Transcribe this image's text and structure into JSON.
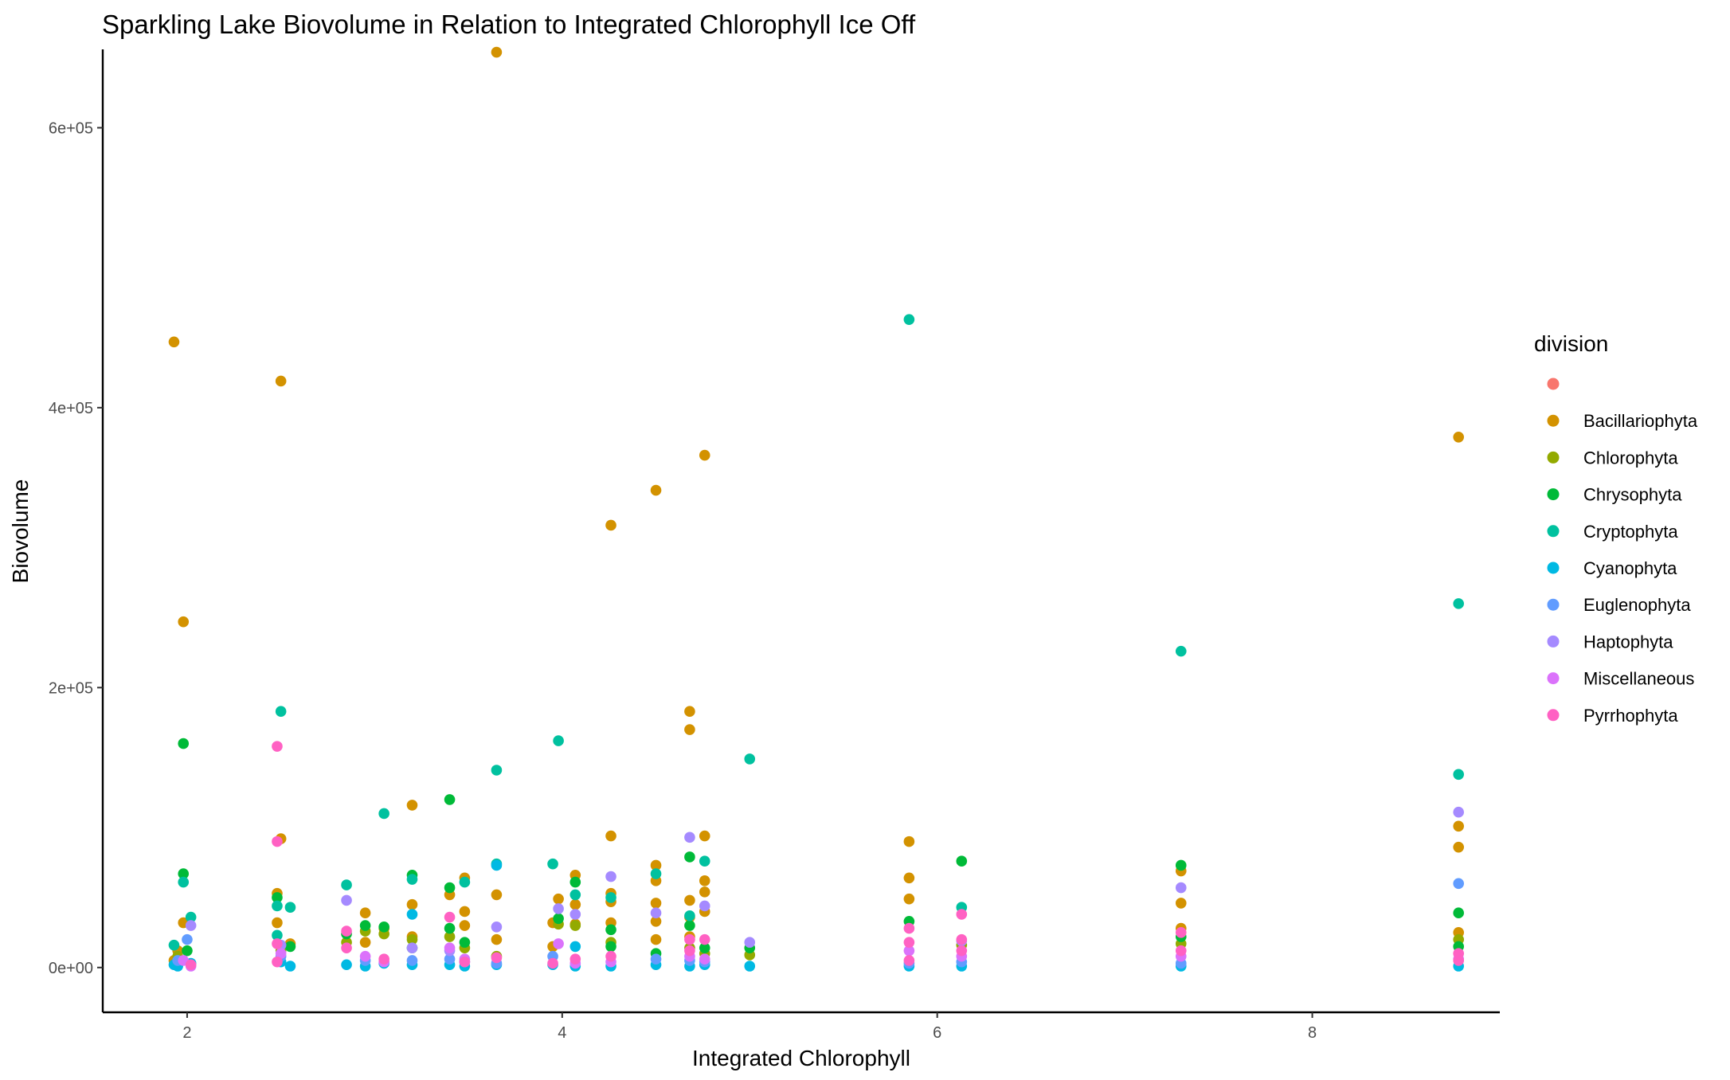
{
  "chart_data": {
    "type": "scatter",
    "title": "Sparkling Lake Biovolume in Relation to Integrated Chlorophyll Ice Off",
    "xlabel": "Integrated Chlorophyll",
    "ylabel": "Biovolume",
    "xlim": [
      1.55,
      9.0
    ],
    "ylim": [
      -32000,
      656000
    ],
    "x_ticks": [
      2,
      4,
      6,
      8
    ],
    "x_tick_labels": [
      "2",
      "4",
      "6",
      "8"
    ],
    "y_ticks": [
      0,
      200000,
      400000,
      600000
    ],
    "y_tick_labels": [
      "0e+00",
      "2e+05",
      "4e+05",
      "6e+05"
    ],
    "grid": false,
    "legend_title": "division",
    "legend_position": "right",
    "series": [
      {
        "name": "",
        "color": "#F8766D",
        "points": []
      },
      {
        "name": "Bacillariophyta",
        "color": "#D39200",
        "points": [
          [
            1.93,
            447000
          ],
          [
            1.98,
            247000
          ],
          [
            1.98,
            32000
          ],
          [
            1.95,
            12000
          ],
          [
            1.93,
            5000
          ],
          [
            2.5,
            419000
          ],
          [
            2.5,
            92000
          ],
          [
            2.48,
            53000
          ],
          [
            2.48,
            32000
          ],
          [
            2.55,
            17000
          ],
          [
            2.95,
            39000
          ],
          [
            2.95,
            18000
          ],
          [
            3.05,
            28000
          ],
          [
            3.2,
            116000
          ],
          [
            3.2,
            45000
          ],
          [
            3.2,
            22000
          ],
          [
            3.4,
            52000
          ],
          [
            3.48,
            64000
          ],
          [
            3.48,
            40000
          ],
          [
            3.48,
            30000
          ],
          [
            3.65,
            654000
          ],
          [
            3.65,
            52000
          ],
          [
            3.65,
            20000
          ],
          [
            3.95,
            32000
          ],
          [
            3.95,
            15000
          ],
          [
            3.98,
            49000
          ],
          [
            4.07,
            66000
          ],
          [
            4.07,
            45000
          ],
          [
            4.07,
            31000
          ],
          [
            4.26,
            316000
          ],
          [
            4.26,
            94000
          ],
          [
            4.26,
            53000
          ],
          [
            4.26,
            47000
          ],
          [
            4.26,
            32000
          ],
          [
            4.5,
            341000
          ],
          [
            4.5,
            73000
          ],
          [
            4.5,
            62000
          ],
          [
            4.5,
            46000
          ],
          [
            4.5,
            33000
          ],
          [
            4.5,
            20000
          ],
          [
            4.68,
            183000
          ],
          [
            4.68,
            170000
          ],
          [
            4.68,
            48000
          ],
          [
            4.68,
            36000
          ],
          [
            4.68,
            22000
          ],
          [
            4.76,
            366000
          ],
          [
            4.76,
            94000
          ],
          [
            4.76,
            62000
          ],
          [
            4.76,
            54000
          ],
          [
            4.76,
            40000
          ],
          [
            5.85,
            90000
          ],
          [
            5.85,
            64000
          ],
          [
            5.85,
            49000
          ],
          [
            7.3,
            69000
          ],
          [
            7.3,
            46000
          ],
          [
            7.3,
            28000
          ],
          [
            8.78,
            379000
          ],
          [
            8.78,
            101000
          ],
          [
            8.78,
            86000
          ],
          [
            8.78,
            25000
          ]
        ]
      },
      {
        "name": "Chlorophyta",
        "color": "#93AA00",
        "points": [
          [
            1.95,
            8000
          ],
          [
            2.5,
            12000
          ],
          [
            2.85,
            18000
          ],
          [
            2.95,
            26000
          ],
          [
            3.05,
            24000
          ],
          [
            3.2,
            20000
          ],
          [
            3.4,
            22000
          ],
          [
            3.48,
            14000
          ],
          [
            3.65,
            8000
          ],
          [
            3.98,
            31000
          ],
          [
            4.07,
            30000
          ],
          [
            4.26,
            18000
          ],
          [
            4.68,
            14000
          ],
          [
            4.76,
            10000
          ],
          [
            5.0,
            9000
          ],
          [
            6.13,
            16000
          ],
          [
            7.3,
            17000
          ],
          [
            8.78,
            20000
          ]
        ]
      },
      {
        "name": "Chrysophyta",
        "color": "#00BA38",
        "points": [
          [
            1.98,
            160000
          ],
          [
            1.98,
            67000
          ],
          [
            2.0,
            12000
          ],
          [
            2.48,
            50000
          ],
          [
            2.55,
            15000
          ],
          [
            2.85,
            24000
          ],
          [
            2.95,
            30000
          ],
          [
            3.05,
            29000
          ],
          [
            3.2,
            66000
          ],
          [
            3.2,
            14000
          ],
          [
            3.4,
            120000
          ],
          [
            3.4,
            57000
          ],
          [
            3.4,
            28000
          ],
          [
            3.48,
            18000
          ],
          [
            3.98,
            35000
          ],
          [
            4.07,
            61000
          ],
          [
            4.26,
            27000
          ],
          [
            4.26,
            15000
          ],
          [
            4.5,
            10000
          ],
          [
            4.68,
            79000
          ],
          [
            4.68,
            30000
          ],
          [
            4.76,
            14000
          ],
          [
            5.0,
            14000
          ],
          [
            5.85,
            33000
          ],
          [
            6.13,
            76000
          ],
          [
            7.3,
            73000
          ],
          [
            7.3,
            22000
          ],
          [
            8.78,
            39000
          ],
          [
            8.78,
            15000
          ]
        ]
      },
      {
        "name": "Cryptophyta",
        "color": "#00C19F",
        "points": [
          [
            1.93,
            16000
          ],
          [
            1.98,
            61000
          ],
          [
            2.02,
            36000
          ],
          [
            2.5,
            183000
          ],
          [
            2.48,
            44000
          ],
          [
            2.48,
            23000
          ],
          [
            2.55,
            43000
          ],
          [
            2.85,
            59000
          ],
          [
            3.05,
            110000
          ],
          [
            3.2,
            63000
          ],
          [
            3.48,
            61000
          ],
          [
            3.65,
            141000
          ],
          [
            3.65,
            74000
          ],
          [
            3.95,
            74000
          ],
          [
            3.98,
            162000
          ],
          [
            4.07,
            52000
          ],
          [
            4.26,
            50000
          ],
          [
            4.5,
            67000
          ],
          [
            4.68,
            37000
          ],
          [
            4.76,
            76000
          ],
          [
            5.0,
            149000
          ],
          [
            5.85,
            463000
          ],
          [
            6.13,
            43000
          ],
          [
            7.3,
            226000
          ],
          [
            8.78,
            260000
          ],
          [
            8.78,
            138000
          ]
        ]
      },
      {
        "name": "Cyanophyta",
        "color": "#00B9E3",
        "points": [
          [
            1.93,
            2000
          ],
          [
            1.95,
            1000
          ],
          [
            2.02,
            3000
          ],
          [
            2.5,
            4000
          ],
          [
            2.55,
            1000
          ],
          [
            2.85,
            2000
          ],
          [
            2.95,
            1000
          ],
          [
            3.05,
            3000
          ],
          [
            3.2,
            38000
          ],
          [
            3.2,
            2000
          ],
          [
            3.4,
            2000
          ],
          [
            3.48,
            1000
          ],
          [
            3.65,
            73000
          ],
          [
            3.65,
            2000
          ],
          [
            3.95,
            2000
          ],
          [
            4.07,
            15000
          ],
          [
            4.07,
            1000
          ],
          [
            4.26,
            1000
          ],
          [
            4.5,
            2000
          ],
          [
            4.68,
            1000
          ],
          [
            4.76,
            2000
          ],
          [
            5.0,
            1000
          ],
          [
            5.85,
            1000
          ],
          [
            6.13,
            1000
          ],
          [
            7.3,
            1000
          ],
          [
            8.78,
            1000
          ]
        ]
      },
      {
        "name": "Euglenophyta",
        "color": "#619CFF",
        "points": [
          [
            1.95,
            5000
          ],
          [
            2.0,
            20000
          ],
          [
            2.5,
            8000
          ],
          [
            2.95,
            5000
          ],
          [
            3.2,
            5000
          ],
          [
            3.4,
            6000
          ],
          [
            3.48,
            4000
          ],
          [
            3.65,
            3000
          ],
          [
            3.95,
            8000
          ],
          [
            4.5,
            6000
          ],
          [
            4.68,
            5000
          ],
          [
            4.76,
            4000
          ],
          [
            5.85,
            3000
          ],
          [
            6.13,
            4000
          ],
          [
            7.3,
            3000
          ],
          [
            8.78,
            60000
          ]
        ]
      },
      {
        "name": "Haptophyta",
        "color": "#A58AFF",
        "points": [
          [
            2.02,
            30000
          ],
          [
            2.5,
            16000
          ],
          [
            2.85,
            48000
          ],
          [
            3.2,
            14000
          ],
          [
            3.4,
            12000
          ],
          [
            3.65,
            29000
          ],
          [
            3.98,
            42000
          ],
          [
            4.07,
            38000
          ],
          [
            4.26,
            65000
          ],
          [
            4.5,
            39000
          ],
          [
            4.68,
            93000
          ],
          [
            4.76,
            44000
          ],
          [
            5.0,
            18000
          ],
          [
            6.13,
            19000
          ],
          [
            7.3,
            57000
          ],
          [
            8.78,
            111000
          ]
        ]
      },
      {
        "name": "Miscellaneous",
        "color": "#DB72FB",
        "points": [
          [
            1.98,
            5000
          ],
          [
            2.02,
            1000
          ],
          [
            2.5,
            10000
          ],
          [
            2.95,
            8000
          ],
          [
            3.05,
            4000
          ],
          [
            3.4,
            14000
          ],
          [
            3.48,
            6000
          ],
          [
            3.98,
            17000
          ],
          [
            4.07,
            3000
          ],
          [
            4.26,
            4000
          ],
          [
            4.68,
            8000
          ],
          [
            4.76,
            6000
          ],
          [
            5.85,
            12000
          ],
          [
            6.13,
            8000
          ],
          [
            7.3,
            8000
          ],
          [
            8.78,
            6000
          ]
        ]
      },
      {
        "name": "Pyrrhophyta",
        "color": "#FF61C3",
        "points": [
          [
            2.02,
            2000
          ],
          [
            2.48,
            158000
          ],
          [
            2.48,
            90000
          ],
          [
            2.48,
            17000
          ],
          [
            2.48,
            4000
          ],
          [
            2.85,
            26000
          ],
          [
            2.85,
            14000
          ],
          [
            3.05,
            6000
          ],
          [
            3.4,
            36000
          ],
          [
            3.48,
            4000
          ],
          [
            3.65,
            7000
          ],
          [
            3.95,
            3000
          ],
          [
            4.07,
            6000
          ],
          [
            4.26,
            8000
          ],
          [
            4.68,
            20000
          ],
          [
            4.68,
            12000
          ],
          [
            4.76,
            20000
          ],
          [
            5.85,
            28000
          ],
          [
            5.85,
            18000
          ],
          [
            5.85,
            5000
          ],
          [
            6.13,
            38000
          ],
          [
            6.13,
            20000
          ],
          [
            6.13,
            12000
          ],
          [
            7.3,
            25000
          ],
          [
            7.3,
            12000
          ],
          [
            8.78,
            10000
          ],
          [
            8.78,
            5000
          ]
        ]
      }
    ]
  }
}
